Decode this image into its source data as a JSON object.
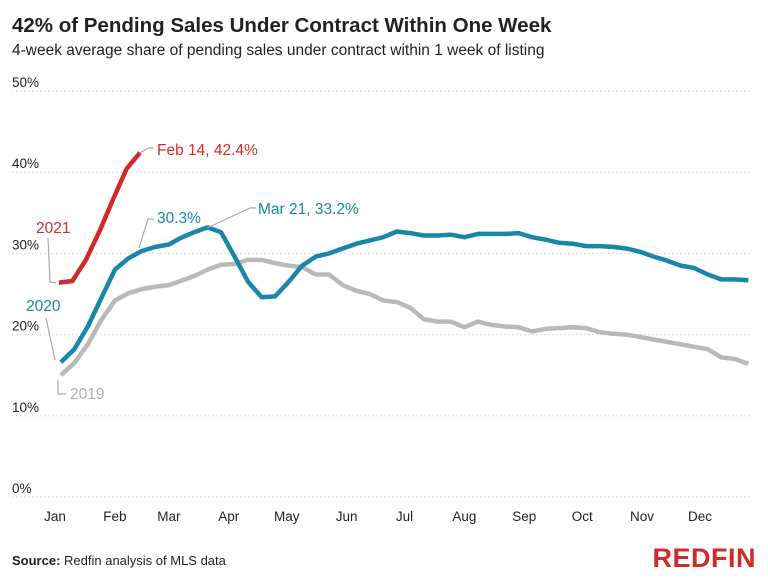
{
  "chart_data": {
    "type": "line",
    "title": "42% of Pending Sales Under Contract Within One Week",
    "subtitle": "4-week average share of pending sales under contract within 1 week of listing",
    "xlabel": "",
    "ylabel": "",
    "ylim": [
      0,
      50
    ],
    "y_ticks": [
      "0%",
      "10%",
      "20%",
      "30%",
      "40%",
      "50%"
    ],
    "x_ticks": [
      "Jan",
      "Feb",
      "Mar",
      "Apr",
      "May",
      "Jun",
      "Jul",
      "Aug",
      "Sep",
      "Oct",
      "Nov",
      "Dec"
    ],
    "grid": "horizontal dotted",
    "week_dates": [
      "01-04",
      "01-11",
      "01-18",
      "01-25",
      "02-01",
      "02-08",
      "02-15",
      "02-22",
      "02-29",
      "03-07",
      "03-14",
      "03-21",
      "03-28",
      "04-04",
      "04-11",
      "04-18",
      "04-25",
      "05-02",
      "05-09",
      "05-16",
      "05-23",
      "05-30",
      "06-06",
      "06-13",
      "06-20",
      "06-27",
      "07-04",
      "07-11",
      "07-18",
      "07-25",
      "08-01",
      "08-08",
      "08-15",
      "08-22",
      "08-29",
      "09-05",
      "09-12",
      "09-19",
      "09-26",
      "10-03",
      "10-10",
      "10-17",
      "10-24",
      "10-31",
      "11-07",
      "11-14",
      "11-21",
      "11-28",
      "12-05",
      "12-12",
      "12-19",
      "12-26"
    ],
    "series": [
      {
        "name": "2019",
        "color": "#b9b9b9",
        "values": [
          15.0,
          16.5,
          18.8,
          21.8,
          24.2,
          25.1,
          25.6,
          25.9,
          26.1,
          26.6,
          27.2,
          28.0,
          28.6,
          28.7,
          29.2,
          29.2,
          28.8,
          28.5,
          28.3,
          27.4,
          27.4,
          26.1,
          25.4,
          25.0,
          24.2,
          24.0,
          23.3,
          21.9,
          21.6,
          21.6,
          20.9,
          21.6,
          21.2,
          21.0,
          20.9,
          20.4,
          20.7,
          20.8,
          20.9,
          20.8,
          20.3,
          20.1,
          20.0,
          19.7,
          19.4,
          19.1,
          18.8,
          18.5,
          18.2,
          17.2,
          17.0,
          16.4
        ]
      },
      {
        "name": "2020",
        "color": "#1a87a8",
        "values": [
          16.6,
          18.2,
          21.0,
          24.5,
          28.0,
          29.4,
          30.3,
          30.8,
          31.1,
          31.9,
          32.6,
          33.2,
          32.6,
          29.6,
          26.5,
          24.6,
          24.7,
          26.5,
          28.5,
          29.6,
          30.0,
          30.6,
          31.2,
          31.6,
          32.0,
          32.7,
          32.5,
          32.2,
          32.2,
          32.3,
          32.0,
          32.4,
          32.4,
          32.4,
          32.5,
          32.0,
          31.7,
          31.3,
          31.2,
          30.9,
          30.9,
          30.8,
          30.6,
          30.2,
          29.6,
          29.1,
          28.5,
          28.2,
          27.4,
          26.8,
          26.8,
          26.7
        ]
      },
      {
        "name": "2021",
        "color": "#d12a2a",
        "dates": [
          "01-03",
          "01-10",
          "01-17",
          "01-24",
          "01-31",
          "02-07",
          "02-14"
        ],
        "values": [
          26.4,
          26.6,
          29.2,
          32.7,
          36.6,
          40.4,
          42.4
        ]
      }
    ],
    "annotations": {
      "red_peak": "Feb 14, 42.4%",
      "blue_feb": "30.3%",
      "blue_peak": "Mar 21, 33.2%"
    }
  },
  "footer": {
    "source_label": "Source:",
    "source_text": " Redfin analysis of MLS data",
    "logo": "REDFIN"
  }
}
